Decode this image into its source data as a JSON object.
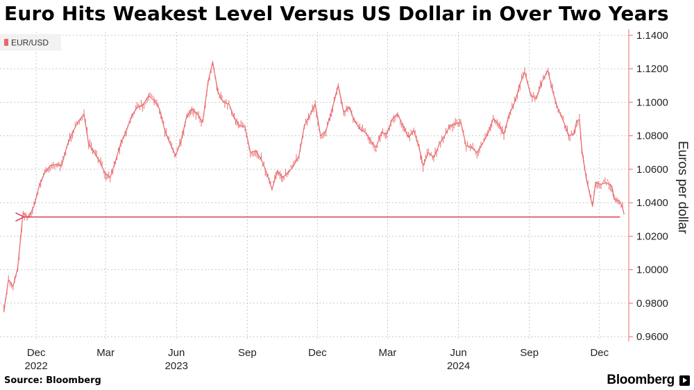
{
  "title": "Euro Hits Weakest Level Versus US Dollar in Over Two Years",
  "source": "Source: Bloomberg",
  "brand": "Bloomberg",
  "colors": {
    "series": "#e8686c",
    "annotation": "#d94a5e",
    "grid": "#c8c8c8"
  },
  "chart_data": {
    "type": "line",
    "title": "Euro Hits Weakest Level Versus US Dollar in Over Two Years",
    "ylabel": "Euros per dollar",
    "ylim": [
      0.958,
      1.142
    ],
    "y_ticks": [
      "1.1400",
      "1.1200",
      "1.1000",
      "1.0800",
      "1.0600",
      "1.0400",
      "1.0200",
      "1.0000",
      "0.9800",
      "0.9600"
    ],
    "x_ticks": [
      {
        "date": "2022-12-01",
        "label": "Dec",
        "year": "2022"
      },
      {
        "date": "2023-03-01",
        "label": "Mar",
        "year": ""
      },
      {
        "date": "2023-06-01",
        "label": "Jun",
        "year": "2023"
      },
      {
        "date": "2023-09-01",
        "label": "Sep",
        "year": ""
      },
      {
        "date": "2023-12-01",
        "label": "Dec",
        "year": ""
      },
      {
        "date": "2024-03-01",
        "label": "Mar",
        "year": ""
      },
      {
        "date": "2024-06-01",
        "label": "Jun",
        "year": "2024"
      },
      {
        "date": "2024-09-01",
        "label": "Sep",
        "year": ""
      },
      {
        "date": "2024-12-01",
        "label": "Dec",
        "year": ""
      }
    ],
    "grid": true,
    "legend": "top-left",
    "series": [
      {
        "name": "EUR/USD",
        "points": [
          [
            "2022-10-20",
            0.975
          ],
          [
            "2022-10-26",
            0.994
          ],
          [
            "2022-11-01",
            0.99
          ],
          [
            "2022-11-07",
            1.001
          ],
          [
            "2022-11-14",
            1.034
          ],
          [
            "2022-11-21",
            1.031
          ],
          [
            "2022-11-28",
            1.038
          ],
          [
            "2022-12-05",
            1.05
          ],
          [
            "2022-12-12",
            1.058
          ],
          [
            "2022-12-19",
            1.062
          ],
          [
            "2022-12-27",
            1.063
          ],
          [
            "2023-01-03",
            1.062
          ],
          [
            "2023-01-10",
            1.074
          ],
          [
            "2023-01-17",
            1.082
          ],
          [
            "2023-01-24",
            1.088
          ],
          [
            "2023-02-01",
            1.093
          ],
          [
            "2023-02-07",
            1.075
          ],
          [
            "2023-02-14",
            1.07
          ],
          [
            "2023-02-21",
            1.065
          ],
          [
            "2023-02-28",
            1.058
          ],
          [
            "2023-03-07",
            1.055
          ],
          [
            "2023-03-14",
            1.065
          ],
          [
            "2023-03-21",
            1.076
          ],
          [
            "2023-03-28",
            1.083
          ],
          [
            "2023-04-04",
            1.092
          ],
          [
            "2023-04-11",
            1.097
          ],
          [
            "2023-04-18",
            1.098
          ],
          [
            "2023-04-26",
            1.104
          ],
          [
            "2023-05-03",
            1.101
          ],
          [
            "2023-05-10",
            1.096
          ],
          [
            "2023-05-17",
            1.083
          ],
          [
            "2023-05-24",
            1.075
          ],
          [
            "2023-05-31",
            1.068
          ],
          [
            "2023-06-07",
            1.077
          ],
          [
            "2023-06-14",
            1.091
          ],
          [
            "2023-06-21",
            1.096
          ],
          [
            "2023-06-28",
            1.093
          ],
          [
            "2023-07-05",
            1.088
          ],
          [
            "2023-07-12",
            1.112
          ],
          [
            "2023-07-18",
            1.124
          ],
          [
            "2023-07-25",
            1.106
          ],
          [
            "2023-08-01",
            1.1
          ],
          [
            "2023-08-08",
            1.099
          ],
          [
            "2023-08-15",
            1.091
          ],
          [
            "2023-08-22",
            1.086
          ],
          [
            "2023-08-29",
            1.085
          ],
          [
            "2023-09-05",
            1.07
          ],
          [
            "2023-09-12",
            1.071
          ],
          [
            "2023-09-19",
            1.066
          ],
          [
            "2023-09-26",
            1.058
          ],
          [
            "2023-10-03",
            1.048
          ],
          [
            "2023-10-10",
            1.059
          ],
          [
            "2023-10-17",
            1.055
          ],
          [
            "2023-10-24",
            1.058
          ],
          [
            "2023-10-31",
            1.062
          ],
          [
            "2023-11-07",
            1.068
          ],
          [
            "2023-11-14",
            1.086
          ],
          [
            "2023-11-21",
            1.092
          ],
          [
            "2023-11-28",
            1.099
          ],
          [
            "2023-12-05",
            1.08
          ],
          [
            "2023-12-12",
            1.083
          ],
          [
            "2023-12-19",
            1.094
          ],
          [
            "2023-12-28",
            1.11
          ],
          [
            "2024-01-04",
            1.094
          ],
          [
            "2024-01-11",
            1.097
          ],
          [
            "2024-01-18",
            1.089
          ],
          [
            "2024-01-25",
            1.084
          ],
          [
            "2024-02-01",
            1.082
          ],
          [
            "2024-02-08",
            1.077
          ],
          [
            "2024-02-15",
            1.073
          ],
          [
            "2024-02-22",
            1.082
          ],
          [
            "2024-02-29",
            1.081
          ],
          [
            "2024-03-07",
            1.09
          ],
          [
            "2024-03-14",
            1.093
          ],
          [
            "2024-03-21",
            1.086
          ],
          [
            "2024-03-28",
            1.079
          ],
          [
            "2024-04-04",
            1.083
          ],
          [
            "2024-04-11",
            1.073
          ],
          [
            "2024-04-16",
            1.062
          ],
          [
            "2024-04-23",
            1.07
          ],
          [
            "2024-04-30",
            1.067
          ],
          [
            "2024-05-07",
            1.075
          ],
          [
            "2024-05-14",
            1.08
          ],
          [
            "2024-05-21",
            1.086
          ],
          [
            "2024-05-28",
            1.087
          ],
          [
            "2024-06-04",
            1.088
          ],
          [
            "2024-06-11",
            1.074
          ],
          [
            "2024-06-18",
            1.073
          ],
          [
            "2024-06-25",
            1.07
          ],
          [
            "2024-07-02",
            1.075
          ],
          [
            "2024-07-09",
            1.081
          ],
          [
            "2024-07-16",
            1.09
          ],
          [
            "2024-07-23",
            1.087
          ],
          [
            "2024-07-30",
            1.081
          ],
          [
            "2024-08-06",
            1.093
          ],
          [
            "2024-08-13",
            1.1
          ],
          [
            "2024-08-20",
            1.111
          ],
          [
            "2024-08-26",
            1.118
          ],
          [
            "2024-09-03",
            1.104
          ],
          [
            "2024-09-10",
            1.102
          ],
          [
            "2024-09-17",
            1.112
          ],
          [
            "2024-09-25",
            1.119
          ],
          [
            "2024-10-01",
            1.107
          ],
          [
            "2024-10-08",
            1.096
          ],
          [
            "2024-10-15",
            1.089
          ],
          [
            "2024-10-22",
            1.08
          ],
          [
            "2024-10-29",
            1.081
          ],
          [
            "2024-11-01",
            1.088
          ],
          [
            "2024-11-05",
            1.09
          ],
          [
            "2024-11-08",
            1.072
          ],
          [
            "2024-11-14",
            1.054
          ],
          [
            "2024-11-22",
            1.038
          ],
          [
            "2024-11-26",
            1.052
          ],
          [
            "2024-12-03",
            1.051
          ],
          [
            "2024-12-10",
            1.052
          ],
          [
            "2024-12-17",
            1.05
          ],
          [
            "2024-12-20",
            1.042
          ],
          [
            "2024-12-27",
            1.041
          ],
          [
            "2024-12-31",
            1.037
          ],
          [
            "2025-01-02",
            1.033
          ]
        ]
      }
    ],
    "annotation": {
      "type": "arrow",
      "y": 1.0315,
      "from_date": "2025-01-02",
      "to_date": "2022-11-15"
    }
  }
}
